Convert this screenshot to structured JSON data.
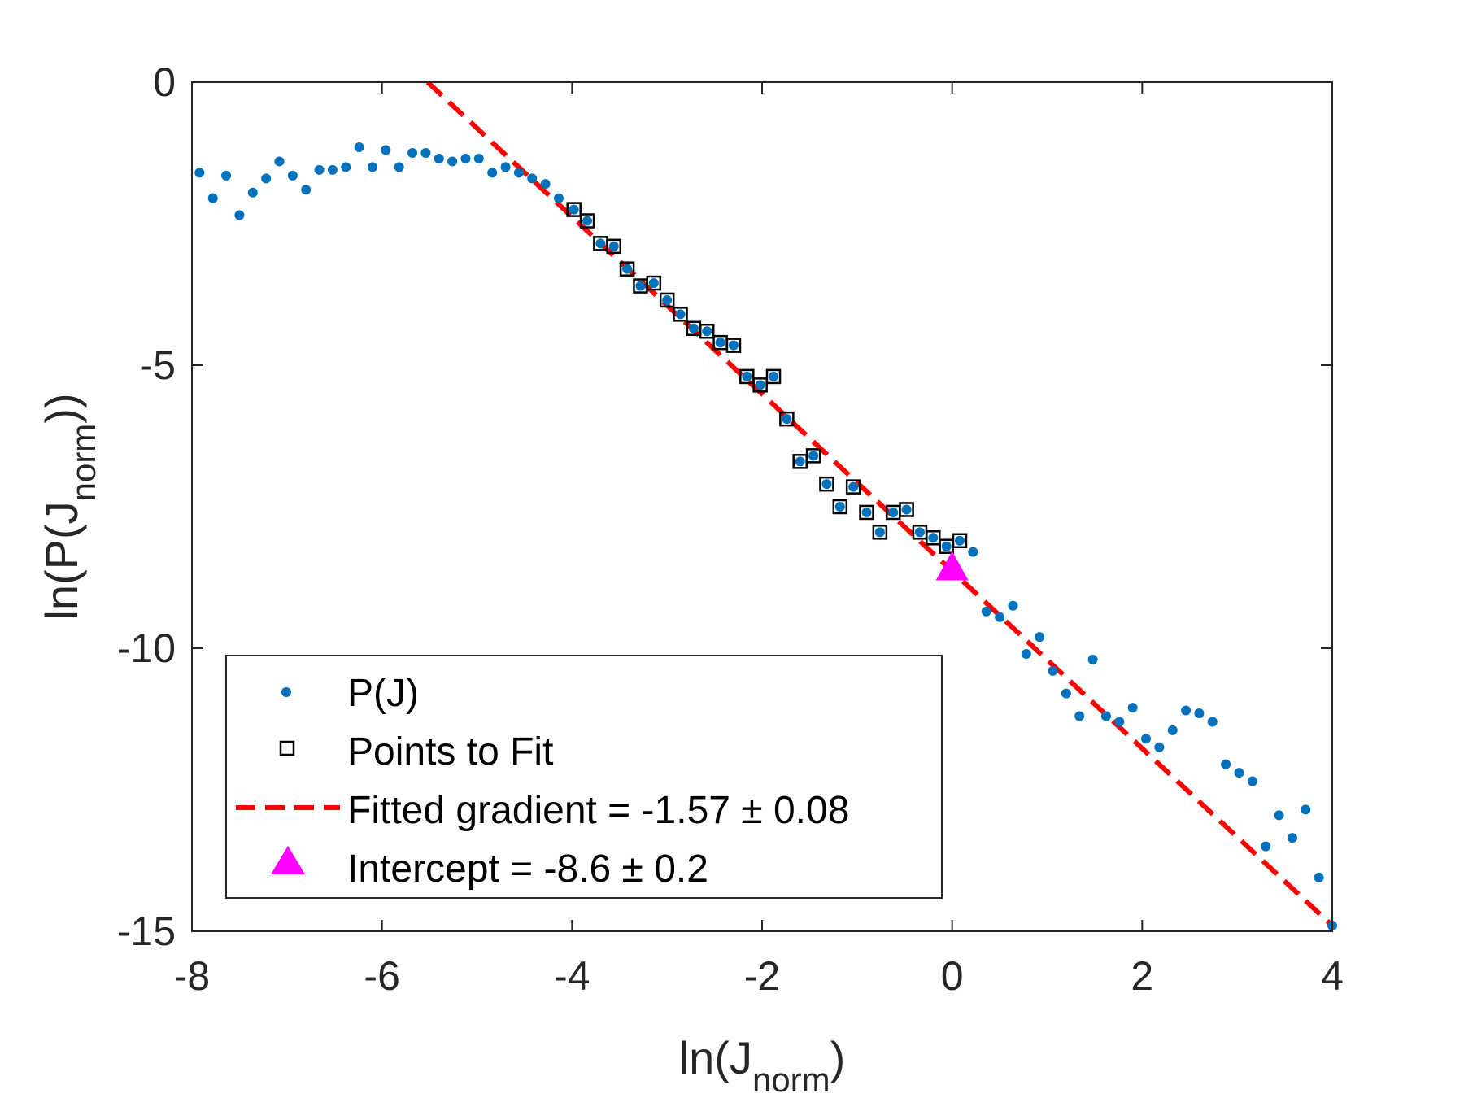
{
  "chart_data": {
    "type": "scatter",
    "xlabel_main": "ln(J",
    "xlabel_sub": "norm",
    "xlabel_end": ")",
    "ylabel_main": "ln(P(J",
    "ylabel_sub": "norm",
    "ylabel_end": "))",
    "xlim": [
      -8,
      4
    ],
    "ylim": [
      -15,
      0
    ],
    "xticks": [
      -8,
      -6,
      -4,
      -2,
      0,
      2,
      4
    ],
    "yticks": [
      0,
      -5,
      -10,
      -15
    ],
    "xtick_labels": [
      "-8",
      "-6",
      "-4",
      "-2",
      "0",
      "2",
      "4"
    ],
    "ytick_labels": [
      "0",
      "-5",
      "-10",
      "-15"
    ],
    "colors": {
      "points": "#0072BD",
      "fit_markers": "#000000",
      "fit_line": "#FF0000",
      "intercept": "#FF00FF",
      "axis": "#262626"
    },
    "series": [
      {
        "name": "P(J)",
        "marker": "dot",
        "x": [
          -7.92,
          -7.78,
          -7.64,
          -7.5,
          -7.36,
          -7.22,
          -7.08,
          -6.94,
          -6.8,
          -6.66,
          -6.52,
          -6.38,
          -6.24,
          -6.1,
          -5.96,
          -5.82,
          -5.68,
          -5.54,
          -5.4,
          -5.26,
          -5.12,
          -4.98,
          -4.84,
          -4.7,
          -4.56,
          -4.42,
          -4.28,
          -4.14,
          -3.98,
          -3.84,
          -3.7,
          -3.56,
          -3.42,
          -3.28,
          -3.14,
          -3.0,
          -2.86,
          -2.72,
          -2.58,
          -2.44,
          -2.3,
          -2.16,
          -2.02,
          -1.88,
          -1.74,
          -1.6,
          -1.46,
          -1.32,
          -1.18,
          -1.04,
          -0.9,
          -0.76,
          -0.62,
          -0.48,
          -0.34,
          -0.2,
          -0.06,
          0.08,
          0.22,
          0.36,
          0.5,
          0.64,
          0.78,
          0.92,
          1.06,
          1.2,
          1.34,
          1.48,
          1.62,
          1.76,
          1.9,
          2.04,
          2.18,
          2.32,
          2.46,
          2.6,
          2.74,
          2.88,
          3.02,
          3.16,
          3.3,
          3.44,
          3.58,
          3.72,
          3.86,
          4.0
        ],
        "y": [
          -1.6,
          -2.05,
          -1.65,
          -2.35,
          -1.95,
          -1.7,
          -1.4,
          -1.65,
          -1.9,
          -1.55,
          -1.55,
          -1.5,
          -1.15,
          -1.5,
          -1.2,
          -1.5,
          -1.25,
          -1.25,
          -1.35,
          -1.4,
          -1.35,
          -1.35,
          -1.6,
          -1.5,
          -1.6,
          -1.7,
          -1.8,
          -2.05,
          -2.25,
          -2.45,
          -2.85,
          -2.9,
          -3.3,
          -3.6,
          -3.55,
          -3.85,
          -4.1,
          -4.35,
          -4.4,
          -4.6,
          -4.65,
          -5.2,
          -5.35,
          -5.2,
          -5.95,
          -6.7,
          -6.6,
          -7.1,
          -7.5,
          -7.15,
          -7.6,
          -7.95,
          -7.6,
          -7.55,
          -7.95,
          -8.05,
          -8.2,
          -8.1,
          -8.3,
          -9.35,
          -9.45,
          -9.25,
          -10.1,
          -9.8,
          -10.4,
          -10.8,
          -11.2,
          -10.2,
          -11.2,
          -11.3,
          -11.05,
          -11.6,
          -11.75,
          -11.45,
          -11.1,
          -11.15,
          -11.3,
          -12.05,
          -12.2,
          -12.35,
          -13.5,
          -12.95,
          -13.35,
          -12.85,
          -14.05,
          -14.9
        ]
      },
      {
        "name": "Points to Fit",
        "marker": "square",
        "x": [
          -3.98,
          -3.84,
          -3.7,
          -3.56,
          -3.42,
          -3.28,
          -3.14,
          -3.0,
          -2.86,
          -2.72,
          -2.58,
          -2.44,
          -2.3,
          -2.16,
          -2.02,
          -1.88,
          -1.74,
          -1.6,
          -1.46,
          -1.32,
          -1.18,
          -1.04,
          -0.9,
          -0.76,
          -0.62,
          -0.48,
          -0.34,
          -0.2,
          -0.06,
          0.08
        ],
        "y": [
          -2.25,
          -2.45,
          -2.85,
          -2.9,
          -3.3,
          -3.6,
          -3.55,
          -3.85,
          -4.1,
          -4.35,
          -4.4,
          -4.6,
          -4.65,
          -5.2,
          -5.35,
          -5.2,
          -5.95,
          -6.7,
          -6.6,
          -7.1,
          -7.5,
          -7.15,
          -7.6,
          -7.95,
          -7.6,
          -7.55,
          -7.95,
          -8.05,
          -8.2,
          -8.1
        ]
      },
      {
        "name": "Fitted gradient = -1.57 ± 0.08",
        "marker": "dashed-line",
        "x": [
          -5.52,
          4.0
        ],
        "y": [
          0.0,
          -14.9
        ]
      },
      {
        "name": "Intercept = -8.6 ± 0.2",
        "marker": "triangle",
        "x": [
          0
        ],
        "y": [
          -8.6
        ]
      }
    ],
    "legend": {
      "placement": "lower-left",
      "entries": [
        "P(J)",
        "Points to Fit",
        "Fitted gradient = -1.57 ± 0.08",
        "Intercept = -8.6 ± 0.2"
      ]
    }
  }
}
